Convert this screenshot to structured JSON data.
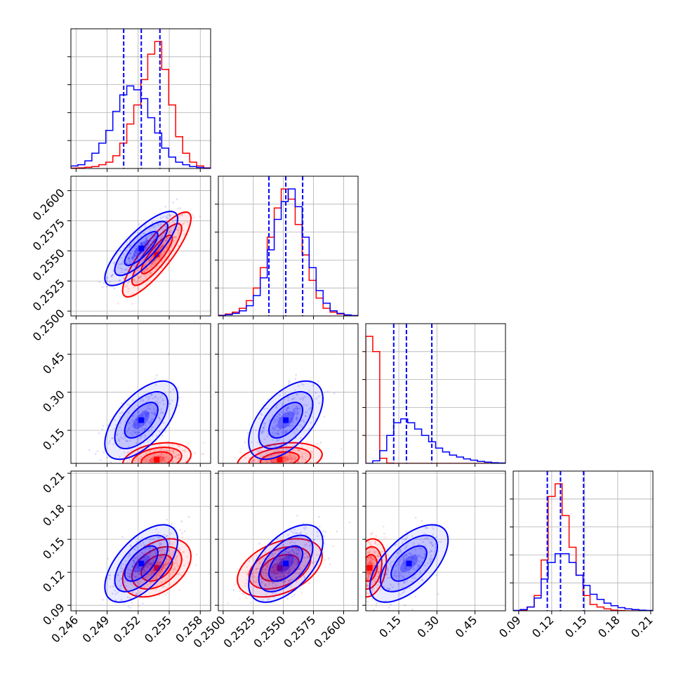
{
  "chart_data": {
    "type": "scatter",
    "title": "",
    "grid": true,
    "legend": "none",
    "colors": {
      "series_a": "#ff0000",
      "series_b": "#0000ff"
    },
    "parameters": [
      {
        "range": [
          0.2455,
          0.259
        ],
        "ticks": [
          0.246,
          0.249,
          0.252,
          0.255,
          0.258
        ],
        "labels": [
          "0.246",
          "0.249",
          "0.252",
          "0.255",
          "0.258"
        ]
      },
      {
        "range": [
          0.2496,
          0.2612
        ],
        "ticks": [
          0.25,
          0.2525,
          0.255,
          0.2575,
          0.26
        ],
        "labels": [
          "0.2500",
          "0.2525",
          "0.2550",
          "0.2575",
          "0.2600"
        ]
      },
      {
        "range": [
          0.02,
          0.57
        ],
        "ticks": [
          0.15,
          0.3,
          0.45
        ],
        "labels": [
          "0.15",
          "0.30",
          "0.45"
        ]
      },
      {
        "range": [
          0.085,
          0.212
        ],
        "ticks": [
          0.09,
          0.12,
          0.15,
          0.18,
          0.21
        ],
        "labels": [
          "0.09",
          "0.12",
          "0.15",
          "0.18",
          "0.21"
        ]
      }
    ],
    "series": [
      {
        "color": "#ff0000",
        "mean": [
          0.2538,
          0.2547,
          0.035,
          0.124
        ],
        "sd": [
          0.0015,
          0.0016,
          0.03,
          0.012
        ],
        "corr": [
          [
            1,
            0.85,
            0.3,
            0.4
          ],
          [
            0.85,
            1,
            0.3,
            0.4
          ],
          [
            0.3,
            0.3,
            1,
            0.2
          ],
          [
            0.4,
            0.4,
            0.2,
            1
          ]
        ]
      },
      {
        "color": "#0000ff",
        "mean": [
          0.2523,
          0.2552,
          0.19,
          0.128
        ],
        "sd": [
          0.0016,
          0.0014,
          0.07,
          0.016
        ],
        "corr": [
          [
            1,
            0.8,
            0.6,
            0.6
          ],
          [
            0.8,
            1,
            0.55,
            0.55
          ],
          [
            0.6,
            0.55,
            1,
            0.6
          ],
          [
            0.6,
            0.55,
            0.6,
            1
          ]
        ]
      }
    ],
    "histograms": [
      {
        "bins": 20,
        "series_a": [
          0.3,
          0.5,
          1,
          1.5,
          3,
          5,
          10,
          20,
          35,
          50,
          70,
          90,
          100,
          78,
          50,
          25,
          12,
          5,
          2,
          0.5
        ],
        "series_b": [
          2,
          3,
          6,
          12,
          20,
          30,
          45,
          58,
          65,
          62,
          55,
          40,
          28,
          16,
          9,
          5,
          3,
          1.5,
          0.8,
          0.3
        ],
        "quantiles_b": [
          0.2506,
          0.2523,
          0.2541
        ]
      },
      {
        "bins": 20,
        "series_a": [
          0.5,
          1.5,
          3,
          6,
          12,
          22,
          38,
          62,
          85,
          100,
          92,
          72,
          48,
          28,
          14,
          6,
          3,
          1.5,
          0.5,
          0.3
        ],
        "series_b": [
          0.3,
          1,
          2,
          4,
          8,
          16,
          30,
          52,
          76,
          90,
          100,
          86,
          62,
          38,
          20,
          10,
          4,
          2,
          0.8,
          0.3
        ],
        "quantiles_b": [
          0.2538,
          0.2552,
          0.2566
        ]
      },
      {
        "bins": 20,
        "series_a": [
          100,
          88,
          4,
          0.2,
          0,
          0,
          0,
          0,
          0,
          0,
          0,
          0,
          0,
          0,
          0,
          0,
          0,
          0,
          0,
          0
        ],
        "series_b": [
          0,
          2,
          10,
          22,
          32,
          35,
          32,
          27,
          22,
          17,
          12,
          9,
          6.5,
          5,
          3.5,
          2.5,
          1.5,
          1,
          0.5,
          0.3
        ],
        "quantiles_b": [
          0.13,
          0.18,
          0.28
        ]
      },
      {
        "bins": 20,
        "series_a": [
          0,
          0.5,
          3,
          12,
          40,
          90,
          100,
          75,
          50,
          28,
          12,
          5,
          3,
          1.5,
          0.5,
          0.2,
          0,
          0,
          0,
          0
        ],
        "series_b": [
          0.3,
          1,
          3,
          10,
          25,
          38,
          45,
          45,
          38,
          28,
          20,
          13,
          9,
          6,
          4,
          2.5,
          1.5,
          1,
          0.5,
          0.3
        ],
        "quantiles_b": [
          0.116,
          0.128,
          0.149
        ]
      }
    ]
  }
}
